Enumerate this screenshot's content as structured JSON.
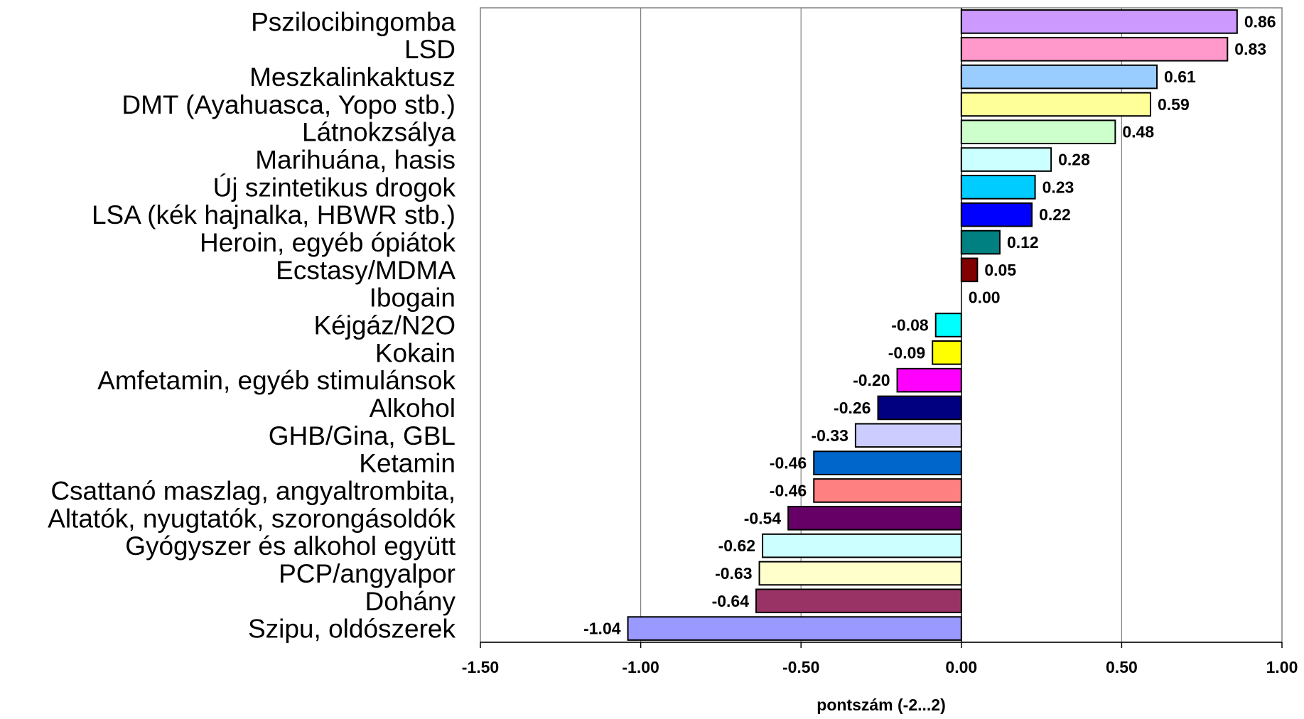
{
  "chart_data": {
    "type": "bar",
    "orientation": "horizontal",
    "title": "",
    "xlabel": "pontszám (-2...2)",
    "ylabel": "",
    "xlim": [
      -1.5,
      1.0
    ],
    "xticks": [
      -1.5,
      -1.0,
      -0.5,
      0.0,
      0.5,
      1.0
    ],
    "xtick_labels": [
      "-1.50",
      "-1.00",
      "-0.50",
      "0.00",
      "0.50",
      "1.00"
    ],
    "grid": "vertical",
    "legend": "none",
    "categories": [
      "Pszilocibingomba",
      "LSD",
      "Meszkalinkaktusz",
      "DMT (Ayahuasca, Yopo stb.)",
      "Látnokzsálya",
      "Marihuána, hasis",
      "Új szintetikus drogok",
      "LSA (kék hajnalka, HBWR stb.)",
      "Heroin, egyéb ópiátok",
      "Ecstasy/MDMA",
      "Ibogain",
      "Kéjgáz/N2O",
      "Kokain",
      "Amfetamin, egyéb stimulánsok",
      "Alkohol",
      "GHB/Gina, GBL",
      "Ketamin",
      "Csattanó maszlag, angyaltrombita,",
      "Altatók, nyugtatók, szorongásoldók",
      "Gyógyszer és alkohol együtt",
      "PCP/angyalpor",
      "Dohány",
      "Szipu, oldószerek"
    ],
    "values": [
      0.86,
      0.83,
      0.61,
      0.59,
      0.48,
      0.28,
      0.23,
      0.22,
      0.12,
      0.05,
      0.0,
      -0.08,
      -0.09,
      -0.2,
      -0.26,
      -0.33,
      -0.46,
      -0.46,
      -0.54,
      -0.62,
      -0.63,
      -0.64,
      -1.04
    ],
    "value_labels": [
      "0.86",
      "0.83",
      "0.61",
      "0.59",
      "0.48",
      "0.28",
      "0.23",
      "0.22",
      "0.12",
      "0.05",
      "0.00",
      "-0.08",
      "-0.09",
      "-0.20",
      "-0.26",
      "-0.33",
      "-0.46",
      "-0.46",
      "-0.54",
      "-0.62",
      "-0.63",
      "-0.64",
      "-1.04"
    ],
    "colors": [
      "#cc99ff",
      "#ff99cc",
      "#99ccff",
      "#ffff99",
      "#ccffcc",
      "#ccffff",
      "#00ccff",
      "#0000ff",
      "#008080",
      "#800000",
      "#ffffff",
      "#00ffff",
      "#ffff00",
      "#ff00ff",
      "#000080",
      "#ccccff",
      "#0066cc",
      "#ff8080",
      "#660066",
      "#ccffff",
      "#ffffcc",
      "#993366",
      "#9999ff"
    ]
  }
}
